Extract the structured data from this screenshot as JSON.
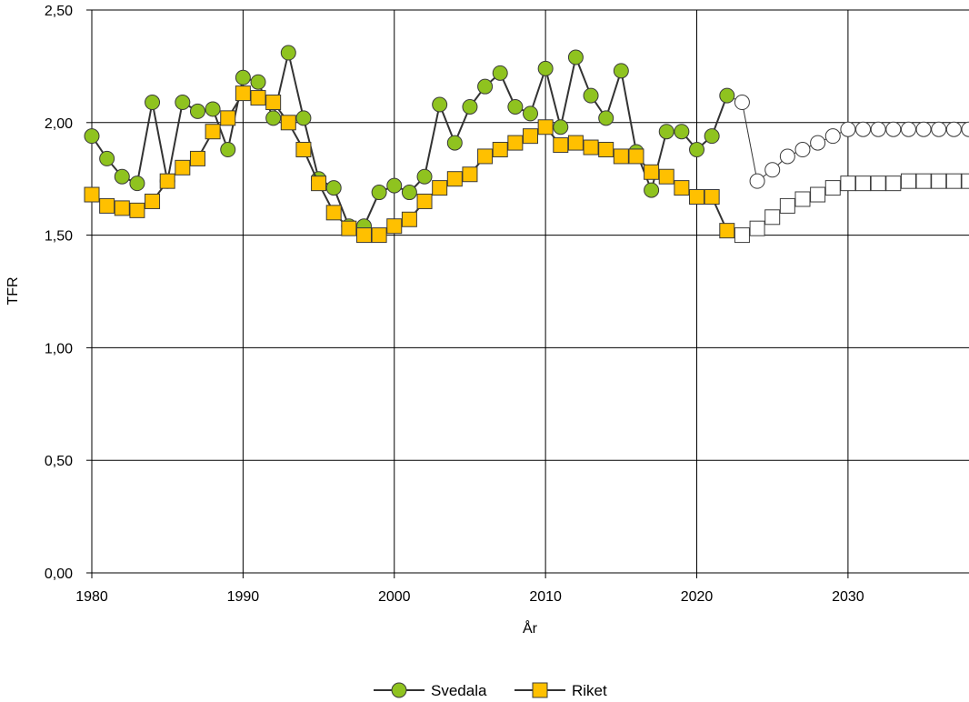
{
  "chart_data": {
    "type": "line",
    "xlabel": "År",
    "ylabel": "TFR",
    "xlim": [
      1980,
      2038
    ],
    "ylim": [
      0,
      2.5
    ],
    "x_ticks": [
      1980,
      1990,
      2000,
      2010,
      2020,
      2030
    ],
    "x_tick_labels": [
      "1980",
      "1990",
      "2000",
      "2010",
      "2020",
      "2030"
    ],
    "y_ticks": [
      0,
      0.5,
      1.0,
      1.5,
      2.0,
      2.5
    ],
    "y_tick_labels": [
      "0,00",
      "0,50",
      "1,00",
      "1,50",
      "2,00",
      "2,50"
    ],
    "grid": true,
    "legend_position": "bottom-center",
    "colors": {
      "svedala_fill": "#8fc31f",
      "riket_fill": "#ffc000",
      "line": "#333333",
      "forecast_fill": "#ffffff",
      "grid": "#000000"
    },
    "series": [
      {
        "name": "Svedala",
        "marker": "circle",
        "x": [
          1980,
          1981,
          1982,
          1983,
          1984,
          1985,
          1986,
          1987,
          1988,
          1989,
          1990,
          1991,
          1992,
          1993,
          1994,
          1995,
          1996,
          1997,
          1998,
          1999,
          2000,
          2001,
          2002,
          2003,
          2004,
          2005,
          2006,
          2007,
          2008,
          2009,
          2010,
          2011,
          2012,
          2013,
          2014,
          2015,
          2016,
          2017,
          2018,
          2019,
          2020,
          2021,
          2022,
          2023,
          2024,
          2025,
          2026,
          2027,
          2028,
          2029,
          2030,
          2031,
          2032,
          2033,
          2034,
          2035,
          2036,
          2037,
          2038
        ],
        "values": [
          1.94,
          1.84,
          1.76,
          1.73,
          2.09,
          1.74,
          2.09,
          2.05,
          2.06,
          1.88,
          2.2,
          2.18,
          2.02,
          2.31,
          2.02,
          1.75,
          1.71,
          1.54,
          1.54,
          1.69,
          1.72,
          1.69,
          1.76,
          2.08,
          1.91,
          2.07,
          2.16,
          2.22,
          2.07,
          2.04,
          2.24,
          1.98,
          2.29,
          2.12,
          2.02,
          2.23,
          1.87,
          1.7,
          1.96,
          1.96,
          1.88,
          1.94,
          2.12,
          2.09,
          1.74,
          1.79,
          1.85,
          1.88,
          1.91,
          1.94,
          1.97,
          1.97,
          1.97,
          1.97,
          1.97,
          1.97,
          1.97,
          1.97,
          1.97
        ],
        "forecast_from": 2023
      },
      {
        "name": "Riket",
        "marker": "square",
        "x": [
          1980,
          1981,
          1982,
          1983,
          1984,
          1985,
          1986,
          1987,
          1988,
          1989,
          1990,
          1991,
          1992,
          1993,
          1994,
          1995,
          1996,
          1997,
          1998,
          1999,
          2000,
          2001,
          2002,
          2003,
          2004,
          2005,
          2006,
          2007,
          2008,
          2009,
          2010,
          2011,
          2012,
          2013,
          2014,
          2015,
          2016,
          2017,
          2018,
          2019,
          2020,
          2021,
          2022,
          2023,
          2024,
          2025,
          2026,
          2027,
          2028,
          2029,
          2030,
          2031,
          2032,
          2033,
          2034,
          2035,
          2036,
          2037,
          2038
        ],
        "values": [
          1.68,
          1.63,
          1.62,
          1.61,
          1.65,
          1.74,
          1.8,
          1.84,
          1.96,
          2.02,
          2.13,
          2.11,
          2.09,
          2.0,
          1.88,
          1.73,
          1.6,
          1.53,
          1.5,
          1.5,
          1.54,
          1.57,
          1.65,
          1.71,
          1.75,
          1.77,
          1.85,
          1.88,
          1.91,
          1.94,
          1.98,
          1.9,
          1.91,
          1.89,
          1.88,
          1.85,
          1.85,
          1.78,
          1.76,
          1.71,
          1.67,
          1.67,
          1.52,
          1.5,
          1.53,
          1.58,
          1.63,
          1.66,
          1.68,
          1.71,
          1.73,
          1.73,
          1.73,
          1.73,
          1.74,
          1.74,
          1.74,
          1.74,
          1.74
        ],
        "forecast_from": 2023
      }
    ]
  }
}
